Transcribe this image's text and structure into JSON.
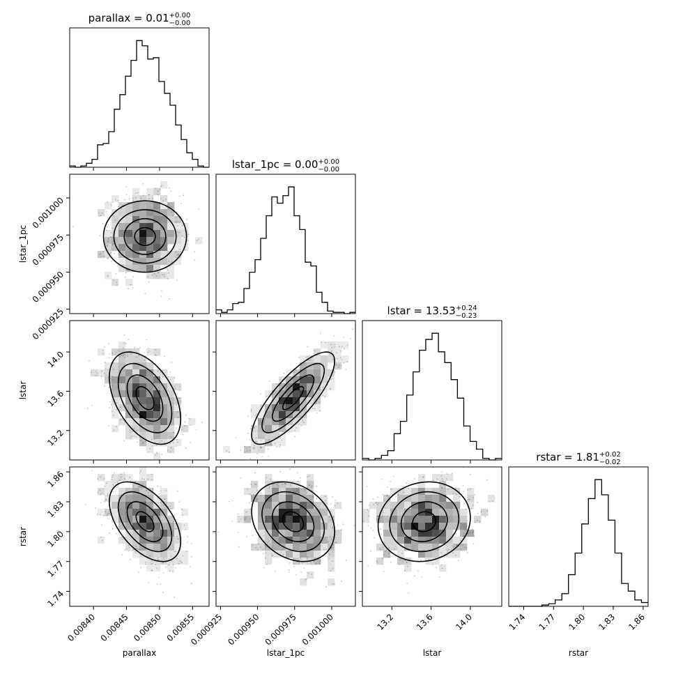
{
  "chart_data": {
    "type": "corner",
    "parameters": [
      {
        "key": "parallax",
        "label": "parallax",
        "title_prefix": "parallax = ",
        "median": "0.01",
        "upper": "+0.00",
        "lower": "−0.00",
        "center": 0.008478,
        "sigma": 2.7e-05,
        "range": [
          0.008364,
          0.008575
        ],
        "ticks": [
          {
            "value": 0.0084,
            "label": "0.00840"
          },
          {
            "value": 0.00845,
            "label": "0.00845"
          },
          {
            "value": 0.0085,
            "label": "0.00850"
          },
          {
            "value": 0.00855,
            "label": "0.00855"
          }
        ]
      },
      {
        "key": "lstar_1pc",
        "label": "lstar_1pc",
        "title_prefix": "lstar_1pc = ",
        "median": "0.00",
        "upper": "+0.00",
        "lower": "−0.00",
        "center": 0.000974,
        "sigma": 1.4e-05,
        "range": [
          0.000922,
          0.001016
        ],
        "ticks": [
          {
            "value": 0.000925,
            "label": "0.000925"
          },
          {
            "value": 0.00095,
            "label": "0.000950"
          },
          {
            "value": 0.000975,
            "label": "0.000975"
          },
          {
            "value": 0.001,
            "label": "0.001000"
          }
        ]
      },
      {
        "key": "lstar",
        "label": "lstar",
        "title_prefix": "lstar = ",
        "median": "13.53",
        "upper": "+0.24",
        "lower": "−0.23",
        "center": 13.53,
        "sigma": 0.235,
        "range": [
          12.9,
          14.32
        ],
        "ticks": [
          {
            "value": 13.2,
            "label": "13.2"
          },
          {
            "value": 13.6,
            "label": "13.6"
          },
          {
            "value": 14.0,
            "label": "14.0"
          }
        ]
      },
      {
        "key": "rstar",
        "label": "rstar",
        "title_prefix": "rstar = ",
        "median": "1.81",
        "upper": "+0.02",
        "lower": "−0.02",
        "center": 1.81,
        "sigma": 0.02,
        "range": [
          1.725,
          1.865
        ],
        "ticks": [
          {
            "value": 1.74,
            "label": "1.74"
          },
          {
            "value": 1.77,
            "label": "1.77"
          },
          {
            "value": 1.8,
            "label": "1.80"
          },
          {
            "value": 1.83,
            "label": "1.83"
          },
          {
            "value": 1.86,
            "label": "1.86"
          }
        ]
      }
    ],
    "correlations": [
      [
        1,
        0,
        -0.45,
        -0.5
      ],
      [
        0,
        1,
        0.8,
        -0.25
      ],
      [
        -0.45,
        0.8,
        1,
        0.1
      ],
      [
        -0.5,
        -0.25,
        0.1,
        1
      ]
    ],
    "histograms": [
      [
        1,
        0,
        1,
        3,
        6,
        17,
        18,
        27,
        44,
        55,
        69,
        81,
        96,
        92,
        82,
        83,
        65,
        56,
        47,
        32,
        21,
        11,
        6,
        1,
        0
      ],
      [
        3,
        1,
        3,
        8,
        9,
        20,
        33,
        43,
        60,
        78,
        93,
        88,
        94,
        101,
        78,
        67,
        41,
        38,
        17,
        9,
        2,
        1,
        1,
        0,
        1
      ],
      [
        1,
        0,
        1,
        3,
        6,
        17,
        25,
        42,
        57,
        71,
        78,
        82,
        70,
        63,
        52,
        40,
        22,
        12,
        7,
        1,
        0,
        1
      ],
      [
        0,
        0,
        0,
        0,
        0,
        1,
        2,
        5,
        10,
        25,
        42,
        65,
        85,
        100,
        88,
        68,
        42,
        18,
        12,
        5,
        3
      ]
    ],
    "samples_per_panel": 900,
    "grid": false,
    "legend": "none"
  }
}
